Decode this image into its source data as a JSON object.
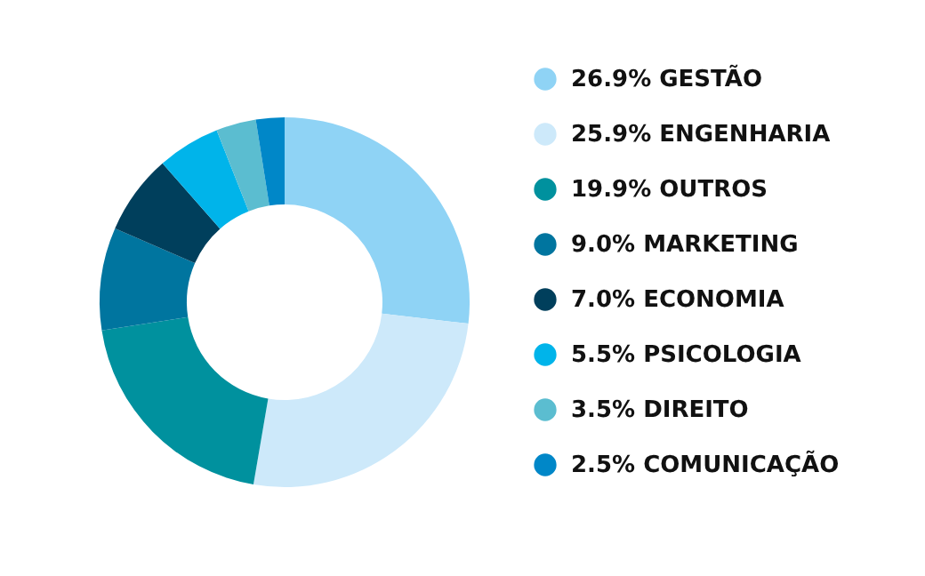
{
  "chart_data": {
    "type": "donut",
    "legend": "right",
    "categories": [
      "GESTÃO",
      "ENGENHARIA",
      "OUTROS",
      "MARKETING",
      "ECONOMIA",
      "PSICOLOGIA",
      "DIREITO",
      "COMUNICAÇÃO"
    ],
    "values": [
      26.9,
      25.9,
      19.9,
      9.0,
      7.0,
      5.5,
      3.5,
      2.5
    ],
    "value_labels": [
      "26.9%",
      "25.9%",
      "19.9%",
      "9.0%",
      "7.0%",
      "5.5%",
      "3.5%",
      "2.5%"
    ],
    "colors": [
      "#8fd3f5",
      "#cde9fa",
      "#00919e",
      "#00759f",
      "#003f5c",
      "#00b4ea",
      "#5bbdd0",
      "#0087c8"
    ]
  }
}
